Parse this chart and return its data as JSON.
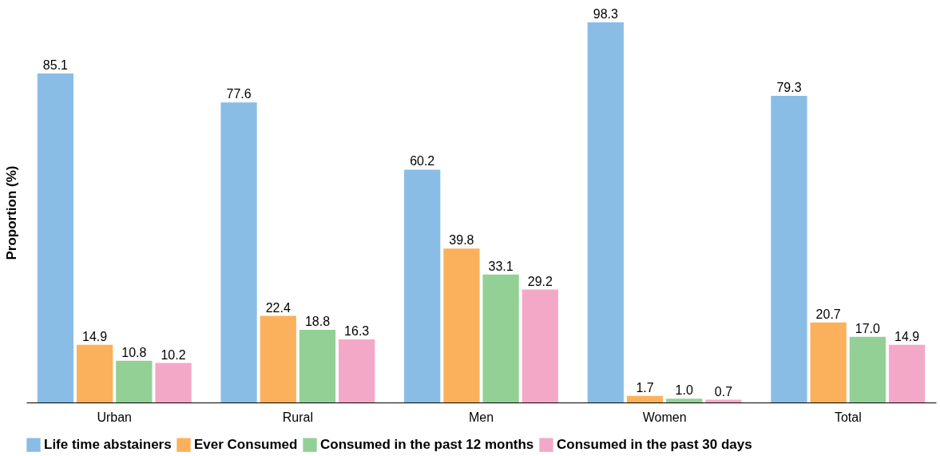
{
  "chart_data": {
    "type": "bar",
    "ylabel": "Proportion (%)",
    "categories": [
      "Urban",
      "Rural",
      "Men",
      "Women",
      "Total"
    ],
    "series": [
      {
        "name": "Life time abstainers",
        "color": "#89bde6",
        "values": [
          85.1,
          77.6,
          60.2,
          98.3,
          79.3
        ],
        "value_labels": [
          "85.1",
          "77.6",
          "60.2",
          "98.3",
          "79.3"
        ]
      },
      {
        "name": "Ever Consumed",
        "color": "#fbb15c",
        "values": [
          14.9,
          22.4,
          39.8,
          1.7,
          20.7
        ],
        "value_labels": [
          "14.9",
          "22.4",
          "39.8",
          "1.7",
          "20.7"
        ]
      },
      {
        "name": "Consumed in the past 12 months",
        "color": "#93d096",
        "values": [
          10.8,
          18.8,
          33.1,
          1.0,
          17.0
        ],
        "value_labels": [
          "10.8",
          "18.8",
          "33.1",
          "1.0",
          "17.0"
        ]
      },
      {
        "name": "Consumed in the past 30 days",
        "color": "#f4a8c8",
        "values": [
          10.2,
          16.3,
          29.2,
          0.7,
          14.9
        ],
        "value_labels": [
          "10.2",
          "16.3",
          "29.2",
          "0.7",
          "14.9"
        ]
      }
    ],
    "legend": "bottom",
    "grid": false,
    "tick_labels": "x"
  }
}
